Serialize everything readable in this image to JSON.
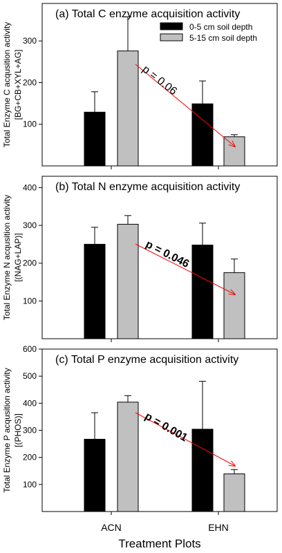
{
  "chart_data": [
    {
      "type": "bar",
      "title": "(a) Total C enzyme acquisition activity",
      "ylabel_lines": [
        "Total Enzyme C acqusition activity",
        "[BG+CB+XYL+AG]"
      ],
      "ylim": [
        0,
        390
      ],
      "yticks": [
        100,
        200,
        300
      ],
      "categories": [
        "ACN",
        "EHN"
      ],
      "series": [
        {
          "name": "0-5 cm soil depth",
          "color": "#000000",
          "values": [
            129,
            149
          ],
          "errors": [
            49,
            55
          ]
        },
        {
          "name": "5-15 cm soil depth",
          "color": "#c0c0c0",
          "values": [
            276,
            70
          ],
          "errors": [
            82,
            5
          ]
        }
      ],
      "legend": "top-right",
      "annotation": {
        "text": "p = 0.06",
        "bold": false
      }
    },
    {
      "type": "bar",
      "title": "(b) Total N enzyme acquisition activity",
      "ylabel_lines": [
        "Total Enzyme N acqusition activity",
        "[(NAG+LAP)]"
      ],
      "ylim": [
        0,
        430
      ],
      "yticks": [
        100,
        200,
        300,
        400
      ],
      "categories": [
        "ACN",
        "EHN"
      ],
      "series": [
        {
          "name": "0-5 cm soil depth",
          "color": "#000000",
          "values": [
            250,
            248
          ],
          "errors": [
            45,
            58
          ]
        },
        {
          "name": "5-15 cm soil depth",
          "color": "#c0c0c0",
          "values": [
            303,
            175
          ],
          "errors": [
            23,
            36
          ]
        }
      ],
      "annotation": {
        "text": "p = 0.046",
        "bold": true
      }
    },
    {
      "type": "bar",
      "title": "(c) Total P enzyme acquisition activity",
      "ylabel_lines": [
        "Total Enzyme P acqusition activity",
        "[(PHOS)]"
      ],
      "ylim": [
        0,
        600
      ],
      "yticks": [
        100,
        200,
        300,
        400,
        500,
        600
      ],
      "categories": [
        "ACN",
        "EHN"
      ],
      "series": [
        {
          "name": "0-5 cm soil depth",
          "color": "#000000",
          "values": [
            267,
            304
          ],
          "errors": [
            98,
            177
          ]
        },
        {
          "name": "5-15 cm soil depth",
          "color": "#c0c0c0",
          "values": [
            404,
            139
          ],
          "errors": [
            24,
            16
          ]
        }
      ],
      "annotation": {
        "text": "p = 0.001",
        "bold": true
      }
    }
  ],
  "xlabel": "Treatment Plots",
  "arrow_color": "#ff0000"
}
